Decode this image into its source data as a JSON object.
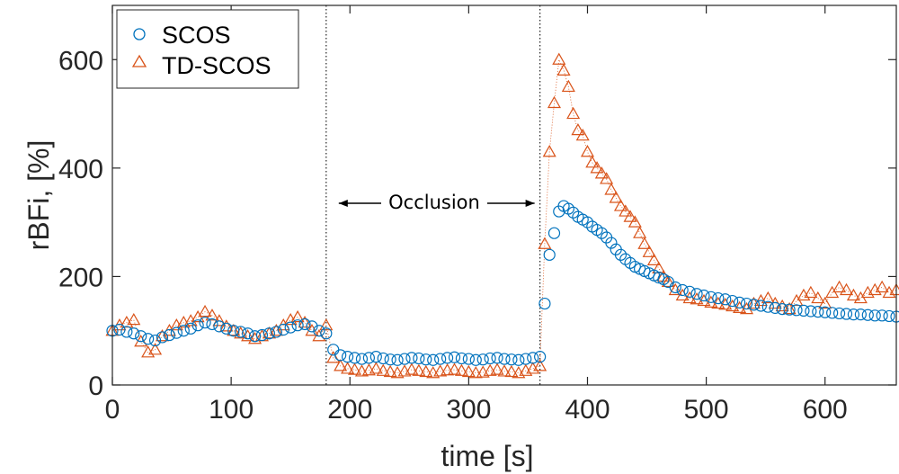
{
  "chart_data": {
    "type": "scatter",
    "xlabel": "time [s]",
    "ylabel": "rBFi, [%]",
    "xlim": [
      0,
      660
    ],
    "ylim": [
      0,
      700
    ],
    "x_ticks": [
      0,
      100,
      200,
      300,
      400,
      500,
      600
    ],
    "y_ticks": [
      0,
      200,
      400,
      600
    ],
    "x_tick_labels": [
      "0",
      "100",
      "200",
      "300",
      "400",
      "500",
      "600"
    ],
    "y_tick_labels": [
      "0",
      "200",
      "400",
      "600"
    ],
    "grid": false,
    "box": true,
    "legend": {
      "placement": "top-left",
      "entries": [
        "SCOS",
        "TD-SCOS"
      ]
    },
    "colors": {
      "SCOS": "#0072BD",
      "TD-SCOS": "#D95319"
    },
    "vlines": [
      180,
      360
    ],
    "annotation": {
      "text": "Occlusion",
      "x_from": 180,
      "x_to": 360,
      "y": 335
    },
    "series": [
      {
        "name": "SCOS",
        "marker": "circle",
        "x": [
          0,
          6,
          12,
          18,
          24,
          30,
          36,
          42,
          48,
          54,
          60,
          66,
          72,
          78,
          84,
          90,
          96,
          102,
          108,
          114,
          120,
          126,
          132,
          138,
          144,
          150,
          156,
          162,
          168,
          174,
          180,
          186,
          192,
          198,
          204,
          210,
          216,
          222,
          228,
          234,
          240,
          246,
          252,
          258,
          264,
          270,
          276,
          282,
          288,
          294,
          300,
          306,
          312,
          318,
          324,
          330,
          336,
          342,
          348,
          354,
          360,
          364,
          368,
          372,
          376,
          380,
          384,
          388,
          392,
          396,
          400,
          404,
          408,
          412,
          416,
          420,
          424,
          428,
          432,
          436,
          440,
          444,
          448,
          452,
          456,
          460,
          464,
          468,
          474,
          480,
          486,
          492,
          498,
          504,
          510,
          516,
          522,
          528,
          534,
          540,
          546,
          552,
          558,
          564,
          570,
          576,
          582,
          588,
          594,
          600,
          606,
          612,
          618,
          624,
          630,
          636,
          642,
          648,
          654,
          660
        ],
        "y": [
          100,
          102,
          98,
          95,
          90,
          85,
          82,
          88,
          92,
          96,
          100,
          104,
          110,
          115,
          112,
          108,
          104,
          100,
          98,
          95,
          90,
          92,
          95,
          98,
          102,
          106,
          110,
          112,
          108,
          100,
          95,
          65,
          55,
          52,
          50,
          48,
          50,
          52,
          49,
          47,
          46,
          48,
          50,
          49,
          47,
          46,
          48,
          50,
          51,
          49,
          48,
          46,
          47,
          49,
          50,
          48,
          47,
          46,
          48,
          50,
          52,
          150,
          240,
          280,
          320,
          330,
          325,
          318,
          310,
          305,
          300,
          292,
          286,
          280,
          272,
          262,
          250,
          240,
          232,
          225,
          218,
          214,
          210,
          206,
          202,
          198,
          195,
          190,
          180,
          175,
          172,
          168,
          165,
          162,
          160,
          158,
          155,
          152,
          150,
          148,
          146,
          144,
          142,
          140,
          139,
          138,
          137,
          136,
          135,
          134,
          133,
          132,
          131,
          130,
          130,
          129,
          128,
          128,
          127,
          126
        ]
      },
      {
        "name": "TD-SCOS",
        "marker": "triangle",
        "x": [
          0,
          6,
          12,
          18,
          24,
          30,
          36,
          42,
          48,
          54,
          60,
          66,
          72,
          78,
          84,
          90,
          96,
          102,
          108,
          114,
          120,
          126,
          132,
          138,
          144,
          150,
          156,
          162,
          168,
          174,
          180,
          186,
          192,
          198,
          204,
          210,
          216,
          222,
          228,
          234,
          240,
          246,
          252,
          258,
          264,
          270,
          276,
          282,
          288,
          294,
          300,
          306,
          312,
          318,
          324,
          330,
          336,
          342,
          348,
          354,
          360,
          364,
          368,
          372,
          376,
          380,
          384,
          388,
          392,
          396,
          400,
          404,
          408,
          412,
          416,
          420,
          424,
          428,
          432,
          436,
          440,
          444,
          448,
          452,
          456,
          460,
          464,
          468,
          474,
          480,
          486,
          492,
          498,
          504,
          510,
          516,
          522,
          528,
          534,
          540,
          546,
          552,
          558,
          564,
          570,
          576,
          582,
          588,
          594,
          600,
          606,
          612,
          618,
          624,
          630,
          636,
          642,
          648,
          654,
          660
        ],
        "y": [
          100,
          110,
          115,
          120,
          80,
          60,
          65,
          90,
          100,
          110,
          115,
          118,
          125,
          135,
          128,
          118,
          108,
          100,
          95,
          90,
          85,
          90,
          95,
          100,
          110,
          120,
          125,
          115,
          100,
          90,
          110,
          50,
          35,
          30,
          28,
          25,
          27,
          30,
          26,
          24,
          22,
          25,
          28,
          26,
          24,
          22,
          25,
          27,
          28,
          26,
          24,
          22,
          23,
          26,
          28,
          25,
          24,
          22,
          26,
          30,
          35,
          260,
          430,
          520,
          600,
          580,
          550,
          500,
          470,
          460,
          430,
          410,
          400,
          390,
          380,
          360,
          345,
          330,
          320,
          310,
          300,
          280,
          260,
          245,
          230,
          215,
          200,
          190,
          175,
          165,
          160,
          158,
          155,
          152,
          150,
          148,
          145,
          142,
          140,
          150,
          155,
          160,
          150,
          145,
          140,
          155,
          165,
          170,
          160,
          150,
          170,
          180,
          175,
          165,
          160,
          170,
          175,
          180,
          170,
          175
        ]
      }
    ]
  }
}
